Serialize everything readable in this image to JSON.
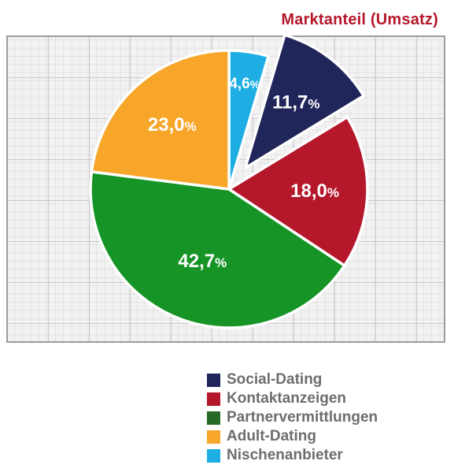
{
  "chart_data": {
    "type": "pie",
    "title": "Marktanteil (Umsatz)",
    "slices": [
      {
        "name": "Nischenanbieter",
        "value": 4.6,
        "label": "4,6",
        "color": "#1eaee4",
        "exploded": false
      },
      {
        "name": "Social-Dating",
        "value": 11.7,
        "label": "11,7",
        "color": "#20255a",
        "exploded": true
      },
      {
        "name": "Kontaktanzeigen",
        "value": 18.0,
        "label": "18,0",
        "color": "#b5172b",
        "exploded": false
      },
      {
        "name": "Partnervermittlungen",
        "value": 42.7,
        "label": "42,7",
        "color": "#169426",
        "exploded": false
      },
      {
        "name": "Adult-Dating",
        "value": 23.0,
        "label": "23,0",
        "color": "#f8a62a",
        "exploded": false
      }
    ],
    "percent_sign": "%",
    "legend": {
      "placement": "bottom-right",
      "entries": [
        {
          "name": "Social-Dating",
          "color": "#20255a"
        },
        {
          "name": "Kontaktanzeigen",
          "color": "#b5172b"
        },
        {
          "name": "Partnervermittlungen",
          "color": "#256b25"
        },
        {
          "name": "Adult-Dating",
          "color": "#f8a62a"
        },
        {
          "name": "Nischenanbieter",
          "color": "#1eaee4"
        }
      ]
    },
    "background_grid": true
  }
}
